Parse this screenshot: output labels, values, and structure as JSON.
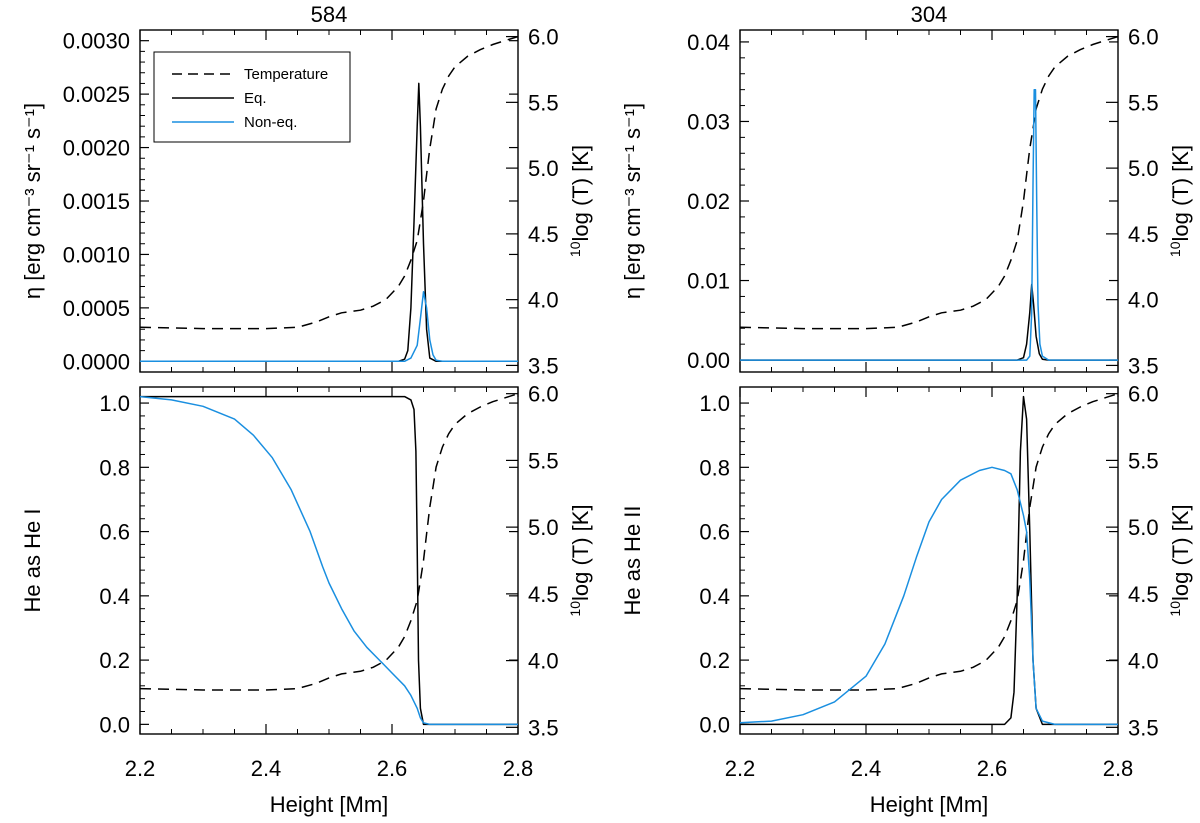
{
  "chart_data": {
    "type": "line",
    "colors": {
      "temperature": "#000000",
      "eq": "#000000",
      "noneq": "#1a8fe0"
    },
    "legend": {
      "placement": "top-left",
      "entries": [
        "Temperature",
        "Eq.",
        "Non-eq."
      ]
    },
    "xaxis": {
      "label": "Height [Mm]",
      "range": [
        2.2,
        2.8
      ],
      "ticks": [
        "2.2",
        "2.4",
        "2.6",
        "2.8"
      ]
    },
    "temperature": {
      "axis_label": "log (T) [K]",
      "axis_label_sup": "10",
      "range": [
        3.45,
        6.05
      ],
      "ticks": [
        "3.5",
        "4.0",
        "4.5",
        "5.0",
        "5.5",
        "6.0"
      ],
      "x": [
        2.2,
        2.25,
        2.3,
        2.35,
        2.4,
        2.45,
        2.48,
        2.5,
        2.52,
        2.55,
        2.57,
        2.59,
        2.61,
        2.62,
        2.63,
        2.64,
        2.645,
        2.65,
        2.655,
        2.66,
        2.665,
        2.67,
        2.68,
        2.69,
        2.7,
        2.72,
        2.74,
        2.76,
        2.78,
        2.8
      ],
      "y": [
        3.79,
        3.785,
        3.78,
        3.78,
        3.78,
        3.79,
        3.83,
        3.87,
        3.9,
        3.92,
        3.95,
        4.0,
        4.1,
        4.18,
        4.3,
        4.45,
        4.6,
        4.75,
        4.95,
        5.15,
        5.3,
        5.45,
        5.6,
        5.7,
        5.77,
        5.85,
        5.9,
        5.94,
        5.97,
        6.0
      ]
    },
    "panels": [
      {
        "id": "top-left",
        "title": "584",
        "ylabel": "η [erg cm⁻³ sr⁻¹ s⁻¹]",
        "ylim": [
          -0.0001,
          0.0031
        ],
        "yticks": [
          "0.0000",
          "0.0005",
          "0.0010",
          "0.0015",
          "0.0020",
          "0.0025",
          "0.0030"
        ],
        "show_legend": true,
        "series": [
          {
            "name": "Eq.",
            "x": [
              2.2,
              2.61,
              2.62,
              2.625,
              2.63,
              2.635,
              2.64,
              2.6425,
              2.645,
              2.65,
              2.655,
              2.66,
              2.67,
              2.8
            ],
            "y": [
              0,
              0,
              2e-05,
              0.0001,
              0.0005,
              0.0013,
              0.0022,
              0.0026,
              0.0022,
              0.0011,
              0.0003,
              3e-05,
              0,
              0
            ]
          },
          {
            "name": "Non-eq.",
            "x": [
              2.2,
              2.62,
              2.63,
              2.64,
              2.645,
              2.65,
              2.655,
              2.66,
              2.665,
              2.67,
              2.68,
              2.8
            ],
            "y": [
              0,
              0,
              3e-05,
              0.00015,
              0.0004,
              0.00065,
              0.0005,
              0.0002,
              6e-05,
              1e-05,
              0,
              0
            ]
          }
        ]
      },
      {
        "id": "top-right",
        "title": "304",
        "ylabel": "η [erg cm⁻³ sr⁻¹ s⁻¹]",
        "ylim": [
          -0.0015,
          0.0415
        ],
        "yticks": [
          "0.00",
          "0.01",
          "0.02",
          "0.03",
          "0.04"
        ],
        "show_legend": false,
        "series": [
          {
            "name": "Eq.",
            "x": [
              2.2,
              2.64,
              2.65,
              2.655,
              2.66,
              2.663,
              2.666,
              2.67,
              2.675,
              2.68,
              2.69,
              2.8
            ],
            "y": [
              0,
              0,
              0.0003,
              0.002,
              0.006,
              0.0095,
              0.007,
              0.003,
              0.0008,
              0.0001,
              0,
              0
            ]
          },
          {
            "name": "Non-eq.",
            "x": [
              2.2,
              2.655,
              2.66,
              2.663,
              2.665,
              2.667,
              2.669,
              2.671,
              2.673,
              2.676,
              2.68,
              2.69,
              2.8
            ],
            "y": [
              0,
              0,
              0.0005,
              0.006,
              0.022,
              0.034,
              0.034,
              0.02,
              0.007,
              0.002,
              0.0005,
              0,
              0
            ]
          }
        ]
      },
      {
        "id": "bottom-left",
        "title": "",
        "ylabel": "He as He I",
        "ylim": [
          -0.03,
          1.05
        ],
        "yticks": [
          "0.0",
          "0.2",
          "0.4",
          "0.6",
          "0.8",
          "1.0"
        ],
        "show_legend": false,
        "series": [
          {
            "name": "Eq.",
            "x": [
              2.2,
              2.62,
              2.63,
              2.635,
              2.638,
              2.64,
              2.642,
              2.645,
              2.65,
              2.8
            ],
            "y": [
              1.02,
              1.02,
              1.01,
              0.98,
              0.85,
              0.55,
              0.2,
              0.05,
              0,
              0
            ]
          },
          {
            "name": "Non-eq.",
            "x": [
              2.2,
              2.25,
              2.3,
              2.35,
              2.38,
              2.41,
              2.44,
              2.47,
              2.49,
              2.5,
              2.52,
              2.54,
              2.56,
              2.58,
              2.6,
              2.62,
              2.63,
              2.64,
              2.645,
              2.65,
              2.66,
              2.8
            ],
            "y": [
              1.02,
              1.01,
              0.99,
              0.95,
              0.9,
              0.83,
              0.73,
              0.6,
              0.49,
              0.44,
              0.36,
              0.29,
              0.24,
              0.2,
              0.16,
              0.12,
              0.09,
              0.05,
              0.02,
              0.005,
              0,
              0
            ]
          }
        ]
      },
      {
        "id": "bottom-right",
        "title": "",
        "ylabel": "He as He II",
        "ylim": [
          -0.03,
          1.05
        ],
        "yticks": [
          "0.0",
          "0.2",
          "0.4",
          "0.6",
          "0.8",
          "1.0"
        ],
        "show_legend": false,
        "series": [
          {
            "name": "Eq.",
            "x": [
              2.2,
              2.62,
              2.63,
              2.635,
              2.64,
              2.645,
              2.65,
              2.655,
              2.66,
              2.665,
              2.67,
              2.68,
              2.8
            ],
            "y": [
              0,
              0,
              0.02,
              0.1,
              0.4,
              0.85,
              1.02,
              0.95,
              0.6,
              0.2,
              0.05,
              0,
              0
            ]
          },
          {
            "name": "Non-eq.",
            "x": [
              2.2,
              2.25,
              2.3,
              2.35,
              2.4,
              2.43,
              2.46,
              2.48,
              2.5,
              2.52,
              2.55,
              2.58,
              2.6,
              2.62,
              2.63,
              2.64,
              2.65,
              2.655,
              2.66,
              2.665,
              2.67,
              2.68,
              2.7,
              2.8
            ],
            "y": [
              0.005,
              0.01,
              0.03,
              0.07,
              0.15,
              0.25,
              0.4,
              0.52,
              0.63,
              0.7,
              0.76,
              0.79,
              0.8,
              0.79,
              0.78,
              0.73,
              0.65,
              0.6,
              0.45,
              0.2,
              0.05,
              0.01,
              0,
              0
            ]
          }
        ]
      }
    ]
  }
}
